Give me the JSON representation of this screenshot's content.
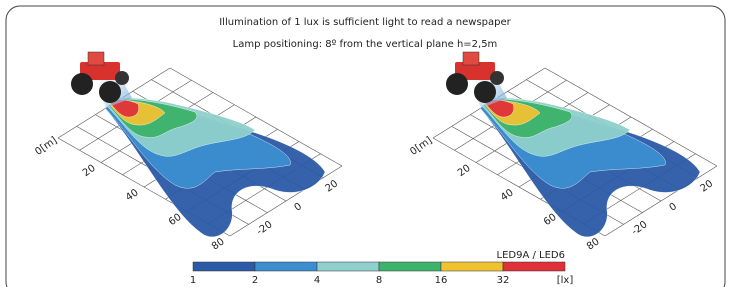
{
  "header": {
    "line1": "Illumination of 1 lux is sufficient light to read a newspaper",
    "line2": "Lamp positioning: 8º from the vertical plane h=2,5m"
  },
  "plots": [
    {
      "distance_labels": [
        "0[m]",
        "20",
        "40",
        "60",
        "80"
      ],
      "lateral_labels": [
        "-20",
        "0",
        "20"
      ]
    },
    {
      "distance_labels": [
        "0[m]",
        "20",
        "40",
        "60",
        "80"
      ],
      "lateral_labels": [
        "-20",
        "0",
        "20"
      ]
    }
  ],
  "legend": {
    "title": "LED9A / LED6",
    "scale": [
      {
        "label": "1",
        "color": "#2b5aa6"
      },
      {
        "label": "2",
        "color": "#3b8fd0"
      },
      {
        "label": "4",
        "color": "#8fd0cc"
      },
      {
        "label": "8",
        "color": "#3db36b"
      },
      {
        "label": "16",
        "color": "#f0c232"
      },
      {
        "label": "32",
        "color": "#e0303a"
      }
    ],
    "unit": "[lx]"
  }
}
